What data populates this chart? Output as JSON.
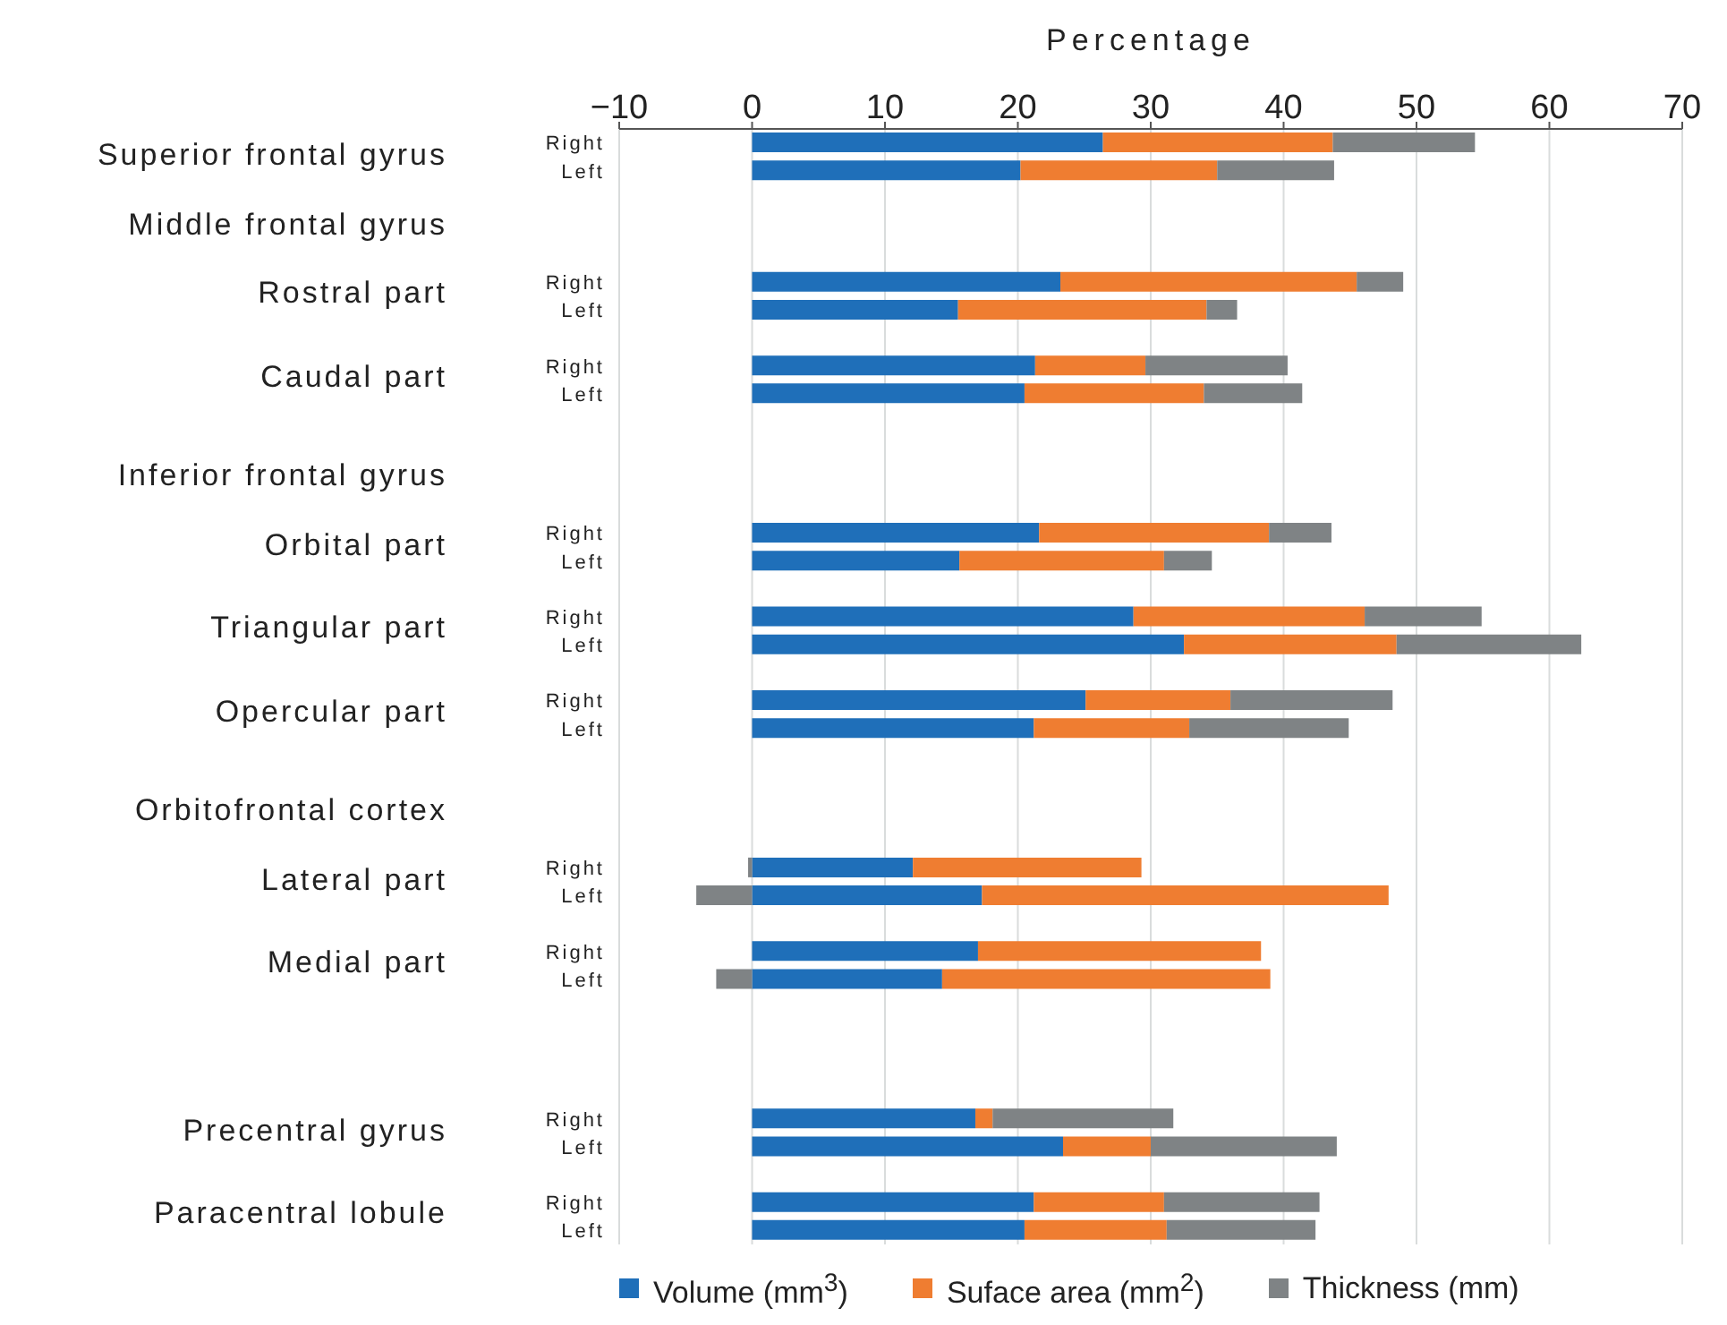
{
  "chart_data": {
    "type": "bar",
    "orientation": "horizontal",
    "stacked": true,
    "xlabel": "Percentage",
    "categories": [
      "Right",
      "Left",
      null,
      null,
      null,
      "Right",
      "Left",
      null,
      "Right",
      "Left",
      null,
      null,
      null,
      null,
      "Right",
      "Left",
      null,
      "Right",
      "Left",
      null,
      "Right",
      "Left",
      null,
      null,
      null,
      null,
      "Right",
      "Left",
      null,
      "Right",
      "Left",
      null,
      null,
      null,
      null,
      "Right",
      "Left",
      null,
      "Right",
      "Left"
    ],
    "series": [
      {
        "name": "Volume (mm$^{3}$)",
        "color": "#1f6fb9",
        "values": [
          26.4,
          20.2,
          null,
          null,
          null,
          23.2,
          15.5,
          null,
          21.3,
          20.5,
          null,
          null,
          null,
          null,
          21.6,
          15.6,
          null,
          28.7,
          32.5,
          null,
          25.1,
          21.2,
          null,
          null,
          null,
          null,
          12.1,
          17.3,
          null,
          17.0,
          14.3,
          null,
          null,
          null,
          null,
          16.8,
          23.4,
          null,
          21.2,
          20.5
        ]
      },
      {
        "name": "Suface area (mm$^{2}$)",
        "color": "#ef7d31",
        "values": [
          17.3,
          14.8,
          null,
          null,
          null,
          22.3,
          18.7,
          null,
          8.3,
          13.5,
          null,
          null,
          null,
          null,
          17.3,
          15.4,
          null,
          17.4,
          16.0,
          null,
          10.9,
          11.7,
          null,
          null,
          null,
          null,
          17.2,
          30.6,
          null,
          21.3,
          24.7,
          null,
          null,
          null,
          null,
          1.3,
          6.6,
          null,
          9.8,
          10.7
        ]
      },
      {
        "name": "Thickness (mm)",
        "color": "#7f8385",
        "values": [
          10.7,
          8.8,
          null,
          null,
          null,
          3.5,
          2.3,
          null,
          10.7,
          7.4,
          null,
          null,
          null,
          null,
          4.7,
          3.6,
          null,
          8.8,
          13.9,
          null,
          12.2,
          12.0,
          null,
          null,
          null,
          null,
          -0.3,
          -4.2,
          null,
          0,
          -2.7,
          null,
          null,
          null,
          null,
          13.6,
          14.0,
          null,
          11.7,
          11.2
        ]
      }
    ],
    "xlim": [
      -10,
      70
    ],
    "xticks": [
      {
        "value": -10,
        "label": "−10"
      },
      0,
      10,
      20,
      30,
      40,
      50,
      60,
      70
    ],
    "grid": "x",
    "legend": "bottom",
    "annotations": [
      "Superior frontal gyrus",
      "Middle frontal gyrus",
      "Rostral part",
      "Caudal part",
      "Inferior frontal gyrus",
      "Orbital part",
      "Triangular part",
      "Opercular part",
      "Orbitofrontal cortex",
      "Lateral part",
      "Medial part",
      "Precentral gyrus",
      "Paracentral lobule"
    ]
  }
}
